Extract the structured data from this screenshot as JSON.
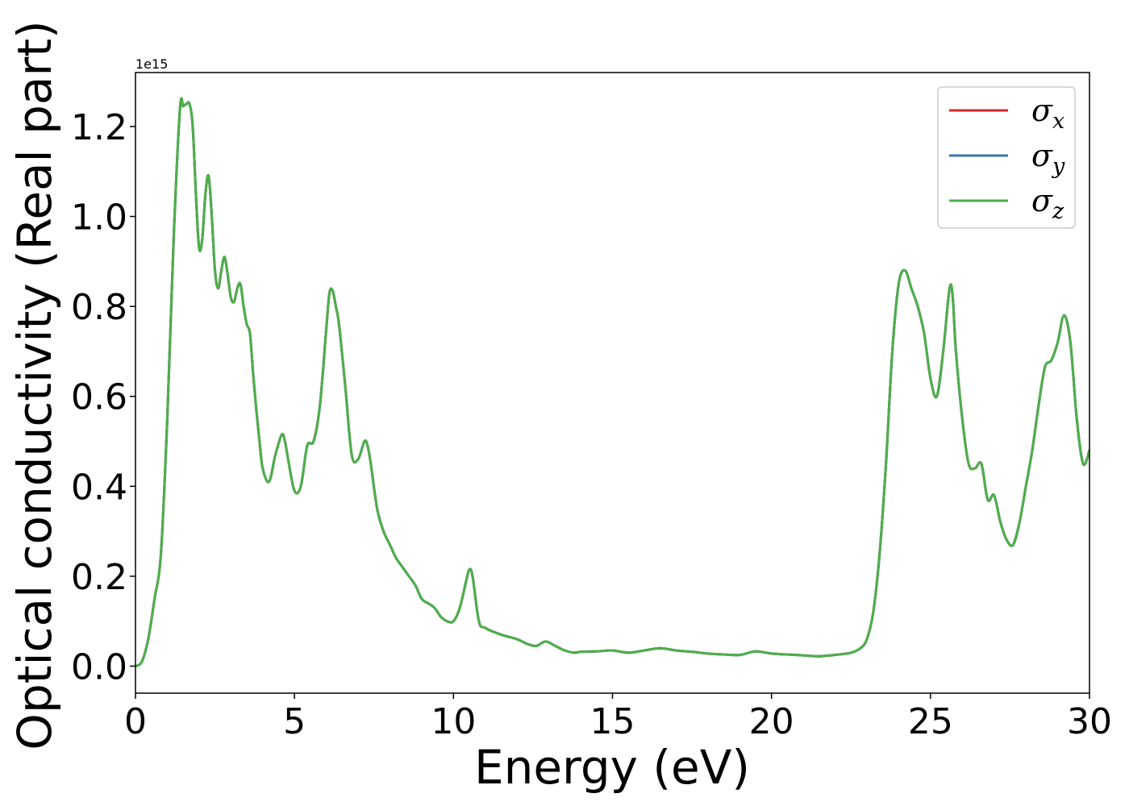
{
  "chart_data": {
    "type": "line",
    "title": "",
    "xlabel": "Energy (eV)",
    "ylabel": "Optical conductivity (Real part)",
    "y_offset_text": "1e15",
    "xlim": [
      0,
      30
    ],
    "ylim": [
      -0.06,
      1.32
    ],
    "xticks": [
      0,
      5,
      10,
      15,
      20,
      25,
      30
    ],
    "xtick_labels": [
      "0",
      "5",
      "10",
      "15",
      "20",
      "25",
      "30"
    ],
    "yticks": [
      0.0,
      0.2,
      0.4,
      0.6,
      0.8,
      1.0,
      1.2
    ],
    "ytick_labels": [
      "0.0",
      "0.2",
      "0.4",
      "0.6",
      "0.8",
      "1.0",
      "1.2"
    ],
    "grid": false,
    "legend_position": "top-right",
    "x": [
      0,
      0.2,
      0.4,
      0.6,
      0.8,
      1.0,
      1.2,
      1.4,
      1.5,
      1.6,
      1.7,
      1.8,
      1.9,
      2.0,
      2.1,
      2.2,
      2.3,
      2.4,
      2.5,
      2.6,
      2.7,
      2.8,
      2.9,
      3.0,
      3.1,
      3.2,
      3.3,
      3.4,
      3.5,
      3.6,
      3.7,
      3.8,
      3.9,
      4.0,
      4.2,
      4.4,
      4.6,
      4.7,
      4.8,
      5.0,
      5.2,
      5.4,
      5.6,
      5.8,
      6.0,
      6.1,
      6.2,
      6.3,
      6.4,
      6.6,
      6.8,
      7.0,
      7.2,
      7.3,
      7.4,
      7.6,
      7.8,
      8.0,
      8.2,
      8.4,
      8.6,
      8.8,
      9.0,
      9.2,
      9.4,
      9.6,
      9.8,
      10.0,
      10.2,
      10.4,
      10.5,
      10.6,
      10.8,
      11.0,
      11.5,
      12.0,
      12.3,
      12.6,
      12.9,
      13.2,
      13.5,
      13.8,
      14.0,
      14.5,
      15.0,
      15.5,
      16.0,
      16.5,
      17.0,
      17.5,
      18.0,
      18.5,
      19.0,
      19.5,
      20.0,
      20.5,
      21.0,
      21.5,
      22.0,
      22.5,
      22.8,
      23.0,
      23.2,
      23.4,
      23.6,
      23.8,
      24.0,
      24.2,
      24.4,
      24.6,
      24.8,
      25.0,
      25.2,
      25.4,
      25.6,
      25.7,
      25.8,
      26.0,
      26.2,
      26.4,
      26.6,
      26.8,
      27.0,
      27.2,
      27.4,
      27.6,
      27.8,
      28.0,
      28.2,
      28.4,
      28.6,
      28.8,
      29.0,
      29.2,
      29.4,
      29.6,
      29.8,
      30.0
    ],
    "series": [
      {
        "name": "σx",
        "color": "#d62728",
        "values": [
          0.0,
          0.01,
          0.06,
          0.15,
          0.25,
          0.55,
          0.95,
          1.24,
          1.245,
          1.25,
          1.25,
          1.2,
          1.05,
          0.93,
          0.95,
          1.05,
          1.09,
          1.0,
          0.88,
          0.84,
          0.88,
          0.91,
          0.87,
          0.82,
          0.81,
          0.84,
          0.85,
          0.8,
          0.76,
          0.74,
          0.65,
          0.57,
          0.5,
          0.44,
          0.41,
          0.47,
          0.515,
          0.5,
          0.46,
          0.39,
          0.4,
          0.49,
          0.5,
          0.58,
          0.75,
          0.83,
          0.835,
          0.8,
          0.76,
          0.62,
          0.47,
          0.46,
          0.5,
          0.49,
          0.45,
          0.35,
          0.3,
          0.27,
          0.24,
          0.22,
          0.2,
          0.18,
          0.15,
          0.14,
          0.13,
          0.11,
          0.1,
          0.1,
          0.13,
          0.19,
          0.215,
          0.2,
          0.1,
          0.085,
          0.07,
          0.06,
          0.05,
          0.045,
          0.055,
          0.045,
          0.035,
          0.03,
          0.032,
          0.033,
          0.035,
          0.03,
          0.035,
          0.04,
          0.035,
          0.032,
          0.028,
          0.026,
          0.025,
          0.033,
          0.028,
          0.026,
          0.024,
          0.022,
          0.025,
          0.03,
          0.04,
          0.06,
          0.12,
          0.25,
          0.45,
          0.7,
          0.85,
          0.88,
          0.84,
          0.8,
          0.74,
          0.64,
          0.6,
          0.7,
          0.84,
          0.82,
          0.7,
          0.55,
          0.45,
          0.44,
          0.45,
          0.37,
          0.38,
          0.32,
          0.28,
          0.27,
          0.32,
          0.4,
          0.48,
          0.58,
          0.665,
          0.68,
          0.72,
          0.78,
          0.72,
          0.55,
          0.45,
          0.48
        ]
      },
      {
        "name": "σy",
        "color": "#3b75af",
        "values": [
          0.0,
          0.01,
          0.06,
          0.15,
          0.25,
          0.55,
          0.95,
          1.24,
          1.245,
          1.25,
          1.25,
          1.2,
          1.05,
          0.93,
          0.95,
          1.05,
          1.09,
          1.0,
          0.88,
          0.84,
          0.88,
          0.91,
          0.87,
          0.82,
          0.81,
          0.84,
          0.85,
          0.8,
          0.76,
          0.74,
          0.65,
          0.57,
          0.5,
          0.44,
          0.41,
          0.47,
          0.515,
          0.5,
          0.46,
          0.39,
          0.4,
          0.49,
          0.5,
          0.58,
          0.75,
          0.83,
          0.835,
          0.8,
          0.76,
          0.62,
          0.47,
          0.46,
          0.5,
          0.49,
          0.45,
          0.35,
          0.3,
          0.27,
          0.24,
          0.22,
          0.2,
          0.18,
          0.15,
          0.14,
          0.13,
          0.11,
          0.1,
          0.1,
          0.13,
          0.19,
          0.215,
          0.2,
          0.1,
          0.085,
          0.07,
          0.06,
          0.05,
          0.045,
          0.055,
          0.045,
          0.035,
          0.03,
          0.032,
          0.033,
          0.035,
          0.03,
          0.035,
          0.04,
          0.035,
          0.032,
          0.028,
          0.026,
          0.025,
          0.033,
          0.028,
          0.026,
          0.024,
          0.022,
          0.025,
          0.03,
          0.04,
          0.06,
          0.12,
          0.25,
          0.45,
          0.7,
          0.85,
          0.88,
          0.84,
          0.8,
          0.74,
          0.64,
          0.6,
          0.7,
          0.84,
          0.82,
          0.7,
          0.55,
          0.45,
          0.44,
          0.45,
          0.37,
          0.38,
          0.32,
          0.28,
          0.27,
          0.32,
          0.4,
          0.48,
          0.58,
          0.665,
          0.68,
          0.72,
          0.78,
          0.72,
          0.55,
          0.45,
          0.48
        ]
      },
      {
        "name": "σz",
        "color": "#4daf4a",
        "values": [
          0.0,
          0.01,
          0.06,
          0.15,
          0.25,
          0.55,
          0.95,
          1.24,
          1.245,
          1.25,
          1.25,
          1.2,
          1.05,
          0.93,
          0.95,
          1.05,
          1.09,
          1.0,
          0.88,
          0.84,
          0.88,
          0.91,
          0.87,
          0.82,
          0.81,
          0.84,
          0.85,
          0.8,
          0.76,
          0.74,
          0.65,
          0.57,
          0.5,
          0.44,
          0.41,
          0.47,
          0.515,
          0.5,
          0.46,
          0.39,
          0.4,
          0.49,
          0.5,
          0.58,
          0.75,
          0.83,
          0.835,
          0.8,
          0.76,
          0.62,
          0.47,
          0.46,
          0.5,
          0.49,
          0.45,
          0.35,
          0.3,
          0.27,
          0.24,
          0.22,
          0.2,
          0.18,
          0.15,
          0.14,
          0.13,
          0.11,
          0.1,
          0.1,
          0.13,
          0.19,
          0.215,
          0.2,
          0.1,
          0.085,
          0.07,
          0.06,
          0.05,
          0.045,
          0.055,
          0.045,
          0.035,
          0.03,
          0.032,
          0.033,
          0.035,
          0.03,
          0.035,
          0.04,
          0.035,
          0.032,
          0.028,
          0.026,
          0.025,
          0.033,
          0.028,
          0.026,
          0.024,
          0.022,
          0.025,
          0.03,
          0.04,
          0.06,
          0.12,
          0.25,
          0.45,
          0.7,
          0.85,
          0.88,
          0.84,
          0.8,
          0.74,
          0.64,
          0.6,
          0.7,
          0.84,
          0.82,
          0.7,
          0.55,
          0.45,
          0.44,
          0.45,
          0.37,
          0.38,
          0.32,
          0.28,
          0.27,
          0.32,
          0.4,
          0.48,
          0.58,
          0.665,
          0.68,
          0.72,
          0.78,
          0.72,
          0.55,
          0.45,
          0.48
        ]
      }
    ],
    "legend": [
      {
        "symbol": "σ",
        "sub": "x"
      },
      {
        "symbol": "σ",
        "sub": "y"
      },
      {
        "symbol": "σ",
        "sub": "z"
      }
    ]
  }
}
